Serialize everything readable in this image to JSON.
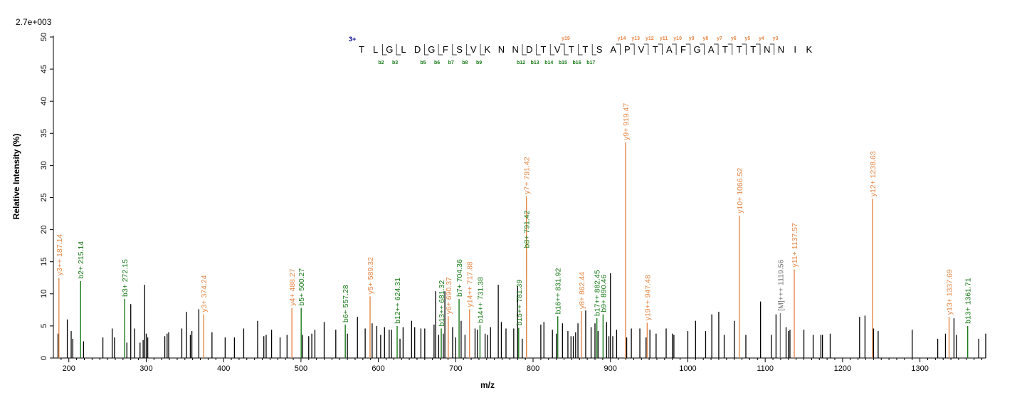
{
  "chart_data": {
    "type": "bar",
    "scale_label": "2.7e+003",
    "xlabel": "m/z",
    "ylabel": "Relative   Intensity (%)",
    "xlim": [
      180,
      1385
    ],
    "ylim": [
      0,
      51
    ],
    "x_ticks": [
      200,
      300,
      400,
      500,
      600,
      700,
      800,
      900,
      1000,
      1100,
      1200,
      1300
    ],
    "y_ticks": [
      0,
      5,
      10,
      15,
      20,
      25,
      30,
      35,
      40,
      45,
      50
    ],
    "colors": {
      "y_ion": "#e5884a",
      "b_ion": "#1a7a1a",
      "precursor": "#777777",
      "unassigned": "#000000",
      "charge": "#00008b"
    },
    "annotated_peaks": [
      {
        "label": "y3++ 187.14",
        "mz": 187.14,
        "intensity": 12.5,
        "ion": "y"
      },
      {
        "label": "b2+ 215.14",
        "mz": 215.14,
        "intensity": 12.0,
        "ion": "b"
      },
      {
        "label": "b3+ 272.15",
        "mz": 272.15,
        "intensity": 9.2,
        "ion": "b"
      },
      {
        "label": "y3+ 374.24",
        "mz": 374.24,
        "intensity": 6.8,
        "ion": "y"
      },
      {
        "label": "y4+ 488.27",
        "mz": 488.27,
        "intensity": 7.8,
        "ion": "y"
      },
      {
        "label": "b5+ 500.27",
        "mz": 500.27,
        "intensity": 7.8,
        "ion": "b"
      },
      {
        "label": "b6+ 557.28",
        "mz": 557.28,
        "intensity": 5.2,
        "ion": "b"
      },
      {
        "label": "y5+ 589.32",
        "mz": 589.32,
        "intensity": 9.6,
        "ion": "y"
      },
      {
        "label": "b12++ 624.31",
        "mz": 624.31,
        "intensity": 5.0,
        "ion": "b"
      },
      {
        "label": "b13++ 681.32",
        "mz": 681.32,
        "intensity": 4.6,
        "ion": "b"
      },
      {
        "label": "y6+ 690.37",
        "mz": 690.37,
        "intensity": 6.5,
        "ion": "y"
      },
      {
        "label": "b7+ 704.36",
        "mz": 704.36,
        "intensity": 9.2,
        "ion": "b"
      },
      {
        "label": "y14++ 717.88",
        "mz": 717.88,
        "intensity": 7.6,
        "ion": "y"
      },
      {
        "label": "b14++ 731.38",
        "mz": 731.38,
        "intensity": 5.1,
        "ion": "b"
      },
      {
        "label": "b15++ 781.39",
        "mz": 781.39,
        "intensity": 4.7,
        "ion": "b"
      },
      {
        "label": "b8+ 791.42",
        "mz": 791.42,
        "intensity": 16.8,
        "ion": "b"
      },
      {
        "label": "y7+ 791.42",
        "mz": 791.42,
        "intensity": 25.2,
        "ion": "y"
      },
      {
        "label": "b16++ 831.92",
        "mz": 831.92,
        "intensity": 6.5,
        "ion": "b"
      },
      {
        "label": "y8+ 862.44",
        "mz": 862.44,
        "intensity": 7.3,
        "ion": "y"
      },
      {
        "label": "b17++ 882.45",
        "mz": 882.45,
        "intensity": 6.2,
        "ion": "b"
      },
      {
        "label": "b9+ 890.46",
        "mz": 890.46,
        "intensity": 6.8,
        "ion": "b"
      },
      {
        "label": "y9+ 919.47",
        "mz": 919.47,
        "intensity": 33.6,
        "ion": "y"
      },
      {
        "label": "y19++ 947.48",
        "mz": 947.48,
        "intensity": 5.5,
        "ion": "y"
      },
      {
        "label": "y10+ 1066.52",
        "mz": 1066.52,
        "intensity": 22.2,
        "ion": "y"
      },
      {
        "label": "[M]+++ 1119.56",
        "mz": 1119.56,
        "intensity": 7.0,
        "ion": "p"
      },
      {
        "label": "y11+ 1137.57",
        "mz": 1137.57,
        "intensity": 13.8,
        "ion": "y"
      },
      {
        "label": "y12+ 1238.63",
        "mz": 1238.63,
        "intensity": 24.8,
        "ion": "y"
      },
      {
        "label": "y13+ 1337.69",
        "mz": 1337.69,
        "intensity": 6.4,
        "ion": "y"
      },
      {
        "label": "b13+ 1361.71",
        "mz": 1361.71,
        "intensity": 5.0,
        "ion": "b"
      }
    ],
    "unassigned_peaks": [
      [
        186,
        3.8
      ],
      [
        198,
        6.0
      ],
      [
        203,
        4.2
      ],
      [
        205,
        3.0
      ],
      [
        219,
        2.6
      ],
      [
        244,
        3.2
      ],
      [
        256,
        4.6
      ],
      [
        259,
        3.2
      ],
      [
        275,
        2.4
      ],
      [
        280,
        8.4
      ],
      [
        285,
        4.6
      ],
      [
        292,
        2.4
      ],
      [
        296,
        2.8
      ],
      [
        298,
        11.4
      ],
      [
        300,
        3.8
      ],
      [
        302,
        3.2
      ],
      [
        324,
        3.4
      ],
      [
        327,
        3.8
      ],
      [
        329,
        4.0
      ],
      [
        346,
        4.6
      ],
      [
        352,
        7.2
      ],
      [
        357,
        3.6
      ],
      [
        359,
        4.2
      ],
      [
        368,
        7.6
      ],
      [
        385,
        4.0
      ],
      [
        402,
        3.2
      ],
      [
        414,
        3.2
      ],
      [
        426,
        4.6
      ],
      [
        444,
        5.8
      ],
      [
        452,
        3.4
      ],
      [
        455,
        3.6
      ],
      [
        462,
        4.4
      ],
      [
        473,
        3.2
      ],
      [
        482,
        3.6
      ],
      [
        502,
        3.6
      ],
      [
        510,
        3.4
      ],
      [
        514,
        3.8
      ],
      [
        518,
        4.4
      ],
      [
        530,
        5.6
      ],
      [
        545,
        4.4
      ],
      [
        560,
        3.8
      ],
      [
        573,
        6.4
      ],
      [
        583,
        4.6
      ],
      [
        592,
        5.4
      ],
      [
        598,
        5.0
      ],
      [
        603,
        3.6
      ],
      [
        608,
        4.8
      ],
      [
        614,
        4.4
      ],
      [
        617,
        4.4
      ],
      [
        628,
        3.0
      ],
      [
        632,
        4.8
      ],
      [
        643,
        5.8
      ],
      [
        647,
        4.8
      ],
      [
        655,
        4.6
      ],
      [
        660,
        4.6
      ],
      [
        672,
        5.2
      ],
      [
        674,
        10.4
      ],
      [
        678,
        3.6
      ],
      [
        684,
        3.8
      ],
      [
        686,
        10.4
      ],
      [
        696,
        4.8
      ],
      [
        700,
        3.2
      ],
      [
        707,
        5.8
      ],
      [
        712,
        3.6
      ],
      [
        725,
        4.6
      ],
      [
        728,
        4.4
      ],
      [
        738,
        3.8
      ],
      [
        741,
        3.6
      ],
      [
        745,
        4.8
      ],
      [
        755,
        11.4
      ],
      [
        759,
        5.6
      ],
      [
        765,
        4.6
      ],
      [
        775,
        4.6
      ],
      [
        780,
        11.2
      ],
      [
        786,
        3.0
      ],
      [
        810,
        5.2
      ],
      [
        814,
        5.6
      ],
      [
        825,
        4.4
      ],
      [
        830,
        3.8
      ],
      [
        838,
        5.4
      ],
      [
        845,
        4.2
      ],
      [
        849,
        3.4
      ],
      [
        852,
        3.4
      ],
      [
        855,
        4.0
      ],
      [
        858,
        5.4
      ],
      [
        868,
        7.4
      ],
      [
        875,
        4.8
      ],
      [
        880,
        5.4
      ],
      [
        884,
        4.2
      ],
      [
        895,
        5.6
      ],
      [
        898,
        3.4
      ],
      [
        900,
        13.2
      ],
      [
        903,
        3.4
      ],
      [
        908,
        4.4
      ],
      [
        921,
        3.2
      ],
      [
        927,
        4.6
      ],
      [
        938,
        4.6
      ],
      [
        946,
        3.2
      ],
      [
        951,
        4.4
      ],
      [
        959,
        3.8
      ],
      [
        972,
        4.6
      ],
      [
        980,
        3.8
      ],
      [
        982,
        3.6
      ],
      [
        1000,
        4.2
      ],
      [
        1010,
        5.8
      ],
      [
        1023,
        4.2
      ],
      [
        1031,
        6.8
      ],
      [
        1040,
        7.2
      ],
      [
        1047,
        3.6
      ],
      [
        1060,
        5.8
      ],
      [
        1075,
        3.6
      ],
      [
        1094,
        8.8
      ],
      [
        1108,
        3.6
      ],
      [
        1114,
        6.8
      ],
      [
        1127,
        4.8
      ],
      [
        1130,
        4.2
      ],
      [
        1132,
        4.4
      ],
      [
        1150,
        4.4
      ],
      [
        1162,
        3.6
      ],
      [
        1172,
        3.6
      ],
      [
        1174,
        3.6
      ],
      [
        1184,
        3.8
      ],
      [
        1222,
        6.4
      ],
      [
        1229,
        6.6
      ],
      [
        1240,
        4.6
      ],
      [
        1246,
        4.2
      ],
      [
        1290,
        4.4
      ],
      [
        1323,
        3.0
      ],
      [
        1333,
        3.8
      ],
      [
        1344,
        6.2
      ],
      [
        1347,
        3.6
      ],
      [
        1376,
        3.0
      ],
      [
        1385,
        3.8
      ]
    ],
    "sequence": {
      "charge": "3+",
      "residues": [
        "T",
        "L",
        "G",
        "L",
        "D",
        "G",
        "F",
        "S",
        "V",
        "K",
        "N",
        "N",
        "D",
        "T",
        "V",
        "T",
        "T",
        "S",
        "A",
        "P",
        "V",
        "T",
        "A",
        "F",
        "G",
        "A",
        "T",
        "T",
        "T",
        "N",
        "N",
        "I",
        "K"
      ],
      "y_marks": [
        {
          "after": 14,
          "label": "y19"
        },
        {
          "after": 18,
          "label": "y14"
        },
        {
          "after": 19,
          "label": "y13"
        },
        {
          "after": 20,
          "label": "y12"
        },
        {
          "after": 21,
          "label": "y11"
        },
        {
          "after": 22,
          "label": "y10"
        },
        {
          "after": 23,
          "label": "y9"
        },
        {
          "after": 24,
          "label": "y8"
        },
        {
          "after": 25,
          "label": "y7"
        },
        {
          "after": 26,
          "label": "y6"
        },
        {
          "after": 27,
          "label": "y5"
        },
        {
          "after": 28,
          "label": "y4"
        },
        {
          "after": 29,
          "label": "y3"
        }
      ],
      "b_marks": [
        {
          "after": 1,
          "label": "b2"
        },
        {
          "after": 2,
          "label": "b3"
        },
        {
          "after": 4,
          "label": "b5"
        },
        {
          "after": 5,
          "label": "b6"
        },
        {
          "after": 6,
          "label": "b7"
        },
        {
          "after": 7,
          "label": "b8"
        },
        {
          "after": 8,
          "label": "b9"
        },
        {
          "after": 11,
          "label": "b12"
        },
        {
          "after": 12,
          "label": "b13"
        },
        {
          "after": 13,
          "label": "b14"
        },
        {
          "after": 14,
          "label": "b15"
        },
        {
          "after": 15,
          "label": "b16"
        },
        {
          "after": 16,
          "label": "b17"
        }
      ]
    }
  }
}
